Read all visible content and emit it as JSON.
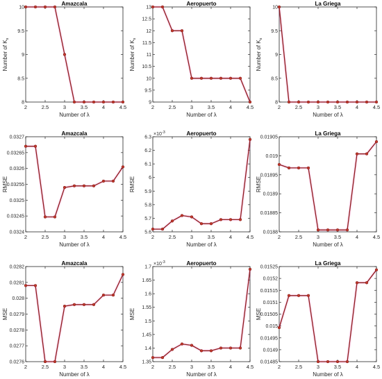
{
  "figure": {
    "line_color": "#8b1a1a",
    "marker_color": "#c0392b",
    "marker_edge": "#7a1414",
    "axis_color": "#262626",
    "highlight_color": "#ff66cc"
  },
  "chart_data": [
    {
      "type": "line",
      "title": "Amazcala",
      "xlabel": "Number of λ",
      "ylabel": "Number of K",
      "ylabel_sub": "s",
      "exponent": "",
      "x": [
        2,
        2.25,
        2.5,
        2.75,
        3,
        3.25,
        3.5,
        3.75,
        4,
        4.25,
        4.5
      ],
      "y": [
        10,
        10,
        10,
        10,
        9,
        8,
        8,
        8,
        8,
        8,
        8
      ],
      "xlim": [
        2,
        4.5
      ],
      "ylim": [
        8,
        10
      ],
      "xticks": [
        2,
        2.5,
        3,
        3.5,
        4,
        4.5
      ],
      "xtick_labels": [
        "2",
        "2.5",
        "3",
        "3.5",
        "4",
        "4.5"
      ],
      "yticks": [
        8,
        8.5,
        9,
        9.5,
        10
      ],
      "ytick_labels": [
        "8",
        "8.5",
        "9",
        "9.5",
        "10"
      ]
    },
    {
      "type": "line",
      "title": "Aeropuerto",
      "xlabel": "Number of λ",
      "ylabel": "Number of K",
      "ylabel_sub": "s",
      "exponent": "",
      "x": [
        2,
        2.25,
        2.5,
        2.75,
        3,
        3.25,
        3.5,
        3.75,
        4,
        4.25,
        4.5
      ],
      "y": [
        13,
        13,
        12,
        12,
        10,
        10,
        10,
        10,
        10,
        10,
        9
      ],
      "xlim": [
        2,
        4.5
      ],
      "ylim": [
        9,
        13
      ],
      "xticks": [
        2,
        2.5,
        3,
        3.5,
        4,
        4.5
      ],
      "xtick_labels": [
        "2",
        "2.5",
        "3",
        "3.5",
        "4",
        "4.5"
      ],
      "yticks": [
        9,
        9.5,
        10,
        10.5,
        11,
        11.5,
        12,
        12.5,
        13
      ],
      "ytick_labels": [
        "9",
        "9.5",
        "10",
        "10.5",
        "11",
        "11.5",
        "12",
        "12.5",
        "13"
      ]
    },
    {
      "type": "line",
      "title": "La Griega",
      "xlabel": "Number of λ",
      "ylabel": "Number of K",
      "ylabel_sub": "s",
      "exponent": "",
      "x": [
        2,
        2.25,
        2.5,
        2.75,
        3,
        3.25,
        3.5,
        3.75,
        4,
        4.25,
        4.5
      ],
      "y": [
        10,
        8,
        8,
        8,
        8,
        8,
        8,
        8,
        8,
        8,
        8
      ],
      "xlim": [
        2,
        4.5
      ],
      "ylim": [
        8,
        10
      ],
      "xticks": [
        2,
        2.5,
        3,
        3.5,
        4,
        4.5
      ],
      "xtick_labels": [
        "2",
        "2.5",
        "3",
        "3.5",
        "4",
        "4.5"
      ],
      "yticks": [
        8,
        8.5,
        9,
        9.5,
        10
      ],
      "ytick_labels": [
        "8",
        "8.5",
        "9",
        "9.5",
        "10"
      ]
    },
    {
      "type": "line",
      "title": "Amazcala",
      "xlabel": "Number of λ",
      "ylabel": "RMSE",
      "ylabel_sub": "",
      "exponent": "",
      "x": [
        2,
        2.25,
        2.5,
        2.75,
        3,
        3.25,
        3.5,
        3.75,
        4,
        4.25,
        4.5
      ],
      "y": [
        0.03267,
        0.03267,
        0.032447,
        0.032447,
        0.03254,
        0.032545,
        0.032545,
        0.032545,
        0.03256,
        0.03256,
        0.032605
      ],
      "xlim": [
        2,
        4.5
      ],
      "ylim": [
        0.0324,
        0.0327
      ],
      "xticks": [
        2,
        2.5,
        3,
        3.5,
        4,
        4.5
      ],
      "xtick_labels": [
        "2",
        "2.5",
        "3",
        "3.5",
        "4",
        "4.5"
      ],
      "yticks": [
        0.0324,
        0.03245,
        0.0325,
        0.03255,
        0.0326,
        0.03265,
        0.0327
      ],
      "ytick_labels": [
        "0.0324",
        "0.03245",
        "0.0325",
        "0.03255",
        "0.0326",
        "0.03265",
        "0.0327"
      ]
    },
    {
      "type": "line",
      "title": "Aeropuerto",
      "xlabel": "Number of λ",
      "ylabel": "RMSE",
      "ylabel_sub": "",
      "exponent": "-3",
      "x": [
        2,
        2.25,
        2.5,
        2.75,
        3,
        3.25,
        3.5,
        3.75,
        4,
        4.25,
        4.5
      ],
      "y": [
        5.62,
        5.62,
        5.68,
        5.72,
        5.71,
        5.66,
        5.66,
        5.69,
        5.69,
        5.69,
        6.28
      ],
      "xlim": [
        2,
        4.5
      ],
      "ylim": [
        5.6,
        6.3
      ],
      "xticks": [
        2,
        2.5,
        3,
        3.5,
        4,
        4.5
      ],
      "xtick_labels": [
        "2",
        "2.5",
        "3",
        "3.5",
        "4",
        "4.5"
      ],
      "yticks": [
        5.6,
        5.7,
        5.8,
        5.9,
        6,
        6.1,
        6.2,
        6.3
      ],
      "ytick_labels": [
        "5.6",
        "5.7",
        "5.8",
        "5.9",
        "6",
        "6.1",
        "6.2",
        "6.3"
      ]
    },
    {
      "type": "line",
      "title": "La Griega",
      "xlabel": "Number of λ",
      "ylabel": "RMSE",
      "ylabel_sub": "",
      "exponent": "",
      "x": [
        2,
        2.25,
        2.5,
        2.75,
        3,
        3.25,
        3.5,
        3.75,
        4,
        4.25,
        4.5
      ],
      "y": [
        0.018977,
        0.018968,
        0.018968,
        0.018968,
        0.018805,
        0.018805,
        0.018805,
        0.018805,
        0.019005,
        0.019005,
        0.019037
      ],
      "xlim": [
        2,
        4.5
      ],
      "ylim": [
        0.0188,
        0.01905
      ],
      "xticks": [
        2,
        2.5,
        3,
        3.5,
        4,
        4.5
      ],
      "xtick_labels": [
        "2",
        "2.5",
        "3",
        "3.5",
        "4",
        "4.5"
      ],
      "yticks": [
        0.0188,
        0.01885,
        0.0189,
        0.01895,
        0.019,
        0.01905
      ],
      "ytick_labels": [
        "0.0188",
        "0.01885",
        "0.0189",
        "0.01895",
        "0.019",
        "0.01905"
      ]
    },
    {
      "type": "line",
      "title": "Amazcala",
      "xlabel": "Number of λ",
      "ylabel": "MSE",
      "ylabel_sub": "",
      "exponent": "",
      "x": [
        2,
        2.25,
        2.5,
        2.75,
        3,
        3.25,
        3.5,
        3.75,
        4,
        4.25,
        4.5
      ],
      "y": [
        0.02808,
        0.02808,
        0.0276,
        0.0276,
        0.02795,
        0.02796,
        0.02796,
        0.02796,
        0.02802,
        0.02802,
        0.02815
      ],
      "xlim": [
        2,
        4.5
      ],
      "ylim": [
        0.0276,
        0.0282
      ],
      "xticks": [
        2,
        2.5,
        3,
        3.5,
        4,
        4.5
      ],
      "xtick_labels": [
        "2",
        "2.5",
        "3",
        "3.5",
        "4",
        "4.5"
      ],
      "yticks": [
        0.0276,
        0.0277,
        0.0278,
        0.0279,
        0.028,
        0.0281,
        0.0282
      ],
      "ytick_labels": [
        "0.0276",
        "0.0277",
        "0.0278",
        "0.0279",
        "0.028",
        "0.0281",
        "0.0282"
      ]
    },
    {
      "type": "line",
      "title": "Aeropuerto",
      "xlabel": "Number of λ",
      "ylabel": "MSE",
      "ylabel_sub": "",
      "exponent": "-3",
      "x": [
        2,
        2.25,
        2.5,
        2.75,
        3,
        3.25,
        3.5,
        3.75,
        4,
        4.25,
        4.5
      ],
      "y": [
        1.365,
        1.365,
        1.395,
        1.415,
        1.41,
        1.39,
        1.39,
        1.4,
        1.4,
        1.4,
        1.69
      ],
      "xlim": [
        2,
        4.5
      ],
      "ylim": [
        1.35,
        1.7
      ],
      "xticks": [
        2,
        2.5,
        3,
        3.5,
        4,
        4.5
      ],
      "xtick_labels": [
        "2",
        "2.5",
        "3",
        "3.5",
        "4",
        "4.5"
      ],
      "yticks": [
        1.35,
        1.4,
        1.45,
        1.5,
        1.55,
        1.6,
        1.65,
        1.7
      ],
      "ytick_labels": [
        "1.35",
        "1.4",
        "1.45",
        "1.5",
        "1.55",
        "1.6",
        "1.65",
        "1.7"
      ]
    },
    {
      "type": "line",
      "title": "La Griega",
      "xlabel": "Number of λ",
      "ylabel": "MSE",
      "ylabel_sub": "",
      "exponent": "",
      "x": [
        2,
        2.25,
        2.5,
        2.75,
        3,
        3.25,
        3.5,
        3.75,
        4,
        4.25,
        4.5
      ],
      "y": [
        0.014993,
        0.015128,
        0.015128,
        0.015128,
        0.01485,
        0.01485,
        0.01485,
        0.01485,
        0.015182,
        0.015182,
        0.015236
      ],
      "xlim": [
        2,
        4.5
      ],
      "ylim": [
        0.01485,
        0.01525
      ],
      "xticks": [
        2,
        2.5,
        3,
        3.5,
        4,
        4.5
      ],
      "xtick_labels": [
        "2",
        "2.5",
        "3",
        "3.5",
        "4",
        "4.5"
      ],
      "yticks": [
        0.01485,
        0.0149,
        0.01495,
        0.015,
        0.01505,
        0.0151,
        0.01515,
        0.0152,
        0.01525
      ],
      "ytick_labels": [
        "0.01485",
        "0.0149",
        "0.01495",
        "0.015",
        "0.01505",
        "0.0151",
        "0.01515",
        "0.0152",
        "0.01525"
      ]
    }
  ]
}
